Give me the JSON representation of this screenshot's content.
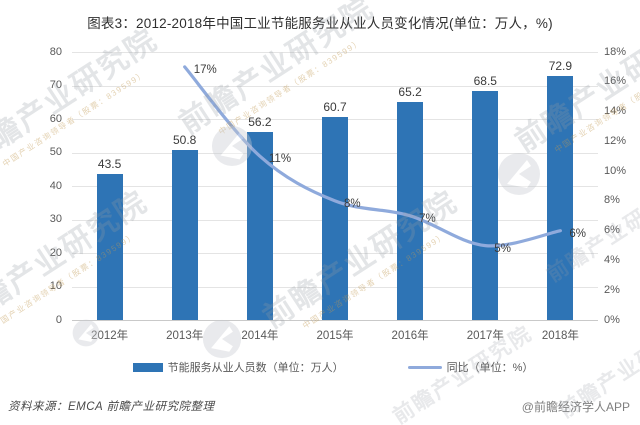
{
  "title": "图表3：2012-2018年中国工业节能服务业从业人员变化情况(单位：万人，%)",
  "chart_data": {
    "type": "bar",
    "subtype": "bar+line combo, dual axis",
    "categories": [
      "2012年",
      "2013年",
      "2014年",
      "2015年",
      "2016年",
      "2017年",
      "2018年"
    ],
    "series": [
      {
        "name": "节能服务从业人员数（单位：万人）",
        "type": "bar",
        "axis": "left",
        "values": [
          43.5,
          50.8,
          56.2,
          60.7,
          65.2,
          68.5,
          72.9
        ],
        "labels": [
          "43.5",
          "50.8",
          "56.2",
          "60.7",
          "65.2",
          "68.5",
          "72.9"
        ]
      },
      {
        "name": "同比（单位：%）",
        "type": "line",
        "axis": "right",
        "values": [
          null,
          17,
          11,
          8,
          7,
          5,
          6
        ],
        "labels": [
          null,
          "17%",
          "11%",
          "8%",
          "7%",
          "5%",
          "6%"
        ]
      }
    ],
    "axes": {
      "left": {
        "min": 0,
        "max": 80,
        "step": 10,
        "ticks": [
          "0",
          "10",
          "20",
          "30",
          "40",
          "50",
          "60",
          "70",
          "80"
        ]
      },
      "right": {
        "min": 0,
        "max": 18,
        "step": 2,
        "ticks": [
          "0%",
          "2%",
          "4%",
          "6%",
          "8%",
          "10%",
          "12%",
          "14%",
          "16%",
          "18%"
        ]
      }
    },
    "grid": true,
    "legend_position": "bottom"
  },
  "legend": {
    "bar_label": "节能服务从业人员数（单位：万人）",
    "line_label": "同比（单位：%）"
  },
  "footer": {
    "source": "资料来源：EMCA 前瞻产业研究院整理",
    "credit": "@前瞻经济学人APP"
  },
  "watermark": {
    "text": "前瞻产业研究院",
    "subtext": "中国产业咨询领导者（股票：839599）",
    "logo_name": "qianzhan-circle-logo"
  },
  "colors": {
    "bar": "#2E74B5",
    "line": "#8FAADC",
    "grid": "#E4E4E4",
    "baseline": "#C9C9C9",
    "axis_text": "#595959",
    "label_text": "#3B3B3B",
    "title_text": "#2F2F2F"
  }
}
